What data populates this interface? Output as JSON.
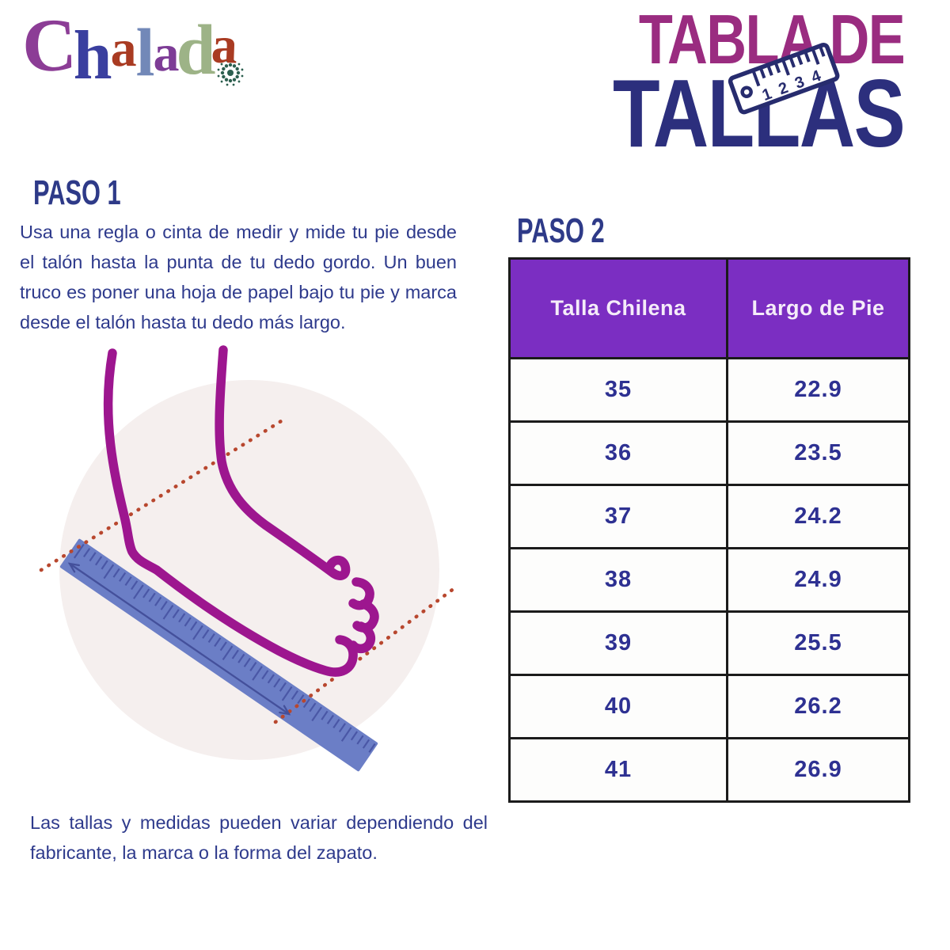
{
  "logo": {
    "name": "Chalada",
    "letters": [
      {
        "ch": "C",
        "color": "#8C3D96"
      },
      {
        "ch": "h",
        "color": "#3A3F9F"
      },
      {
        "ch": "a",
        "color": "#A93B22"
      },
      {
        "ch": "l",
        "color": "#7288B8"
      },
      {
        "ch": "a",
        "color": "#7D3C96"
      },
      {
        "ch": "d",
        "color": "#9DB387"
      },
      {
        "ch": "a",
        "color": "#A93B22"
      }
    ],
    "ornament_color": "#2C5F4F"
  },
  "title": {
    "line1": "TABLA DE",
    "line2": "TALLAS",
    "ruler_numbers": [
      "1",
      "2",
      "3",
      "4"
    ]
  },
  "step1": {
    "heading": "PASO 1",
    "body": "Usa una regla o cinta de medir y mide tu pie desde el talón hasta la punta de tu dedo gordo. Un buen truco es poner una hoja de papel bajo tu pie y marca desde el talón hasta tu dedo más largo."
  },
  "step2": {
    "heading": "PASO 2"
  },
  "note": "Las tallas y medidas pueden variar dependiendo del fabricante, la marca o la forma del zapato.",
  "size_table": {
    "columns": [
      "Talla Chilena",
      "Largo de Pie"
    ],
    "rows": [
      [
        "35",
        "22.9"
      ],
      [
        "36",
        "23.5"
      ],
      [
        "37",
        "24.2"
      ],
      [
        "38",
        "24.9"
      ],
      [
        "39",
        "25.5"
      ],
      [
        "40",
        "26.2"
      ],
      [
        "41",
        "26.9"
      ]
    ]
  },
  "chart_data": {
    "type": "table",
    "title": "Tabla de Tallas",
    "columns": [
      "Talla Chilena",
      "Largo de Pie"
    ],
    "rows": [
      [
        35,
        22.9
      ],
      [
        36,
        23.5
      ],
      [
        37,
        24.2
      ],
      [
        38,
        24.9
      ],
      [
        39,
        25.5
      ],
      [
        40,
        26.2
      ],
      [
        41,
        26.9
      ]
    ]
  },
  "colors": {
    "title_magenta": "#9A2C80",
    "title_navy": "#2C2F7D",
    "heading_navy": "#2E3A88",
    "body_navy": "#2E3A8C",
    "table_header_bg": "#7B2EC2",
    "table_header_text": "#F5ECF9",
    "table_value_text": "#2E3192",
    "table_border": "#1B1B1B",
    "icon_navy": "#272C6E",
    "circle_bg": "#F5EFEE",
    "foot_magenta": "#9D168F",
    "ruler_blue": "#6B7EC6",
    "ruler_tick": "#4A57A6",
    "dotted_red": "#B8472E",
    "arrow_navy": "#44509B"
  }
}
